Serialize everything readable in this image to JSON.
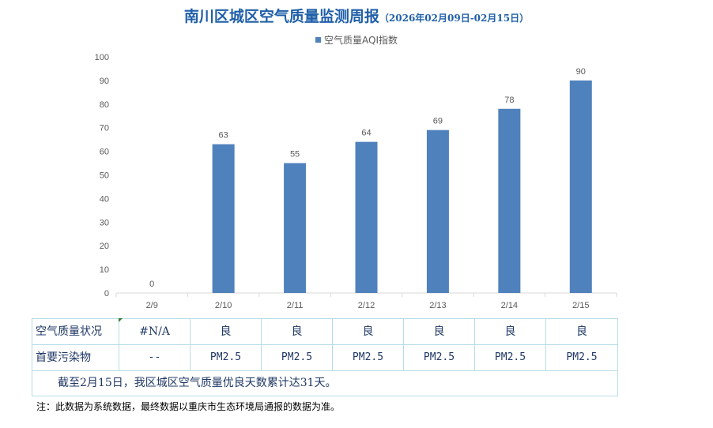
{
  "chart_data": {
    "type": "bar",
    "title": "南川区城区空气质量监测周报",
    "subtitle": "（2026年02月09日-02月15日）",
    "categories": [
      "2/9",
      "2/10",
      "2/11",
      "2/12",
      "2/13",
      "2/14",
      "2/15"
    ],
    "series": [
      {
        "name": "空气质量AQI指数",
        "values": [
          0,
          63,
          55,
          64,
          69,
          78,
          90
        ],
        "color": "#4f81bd"
      }
    ],
    "ylim": [
      0,
      100
    ],
    "yticks": [
      0,
      10,
      20,
      30,
      40,
      50,
      60,
      70,
      80,
      90,
      100
    ],
    "grid": false,
    "legend": "top-center",
    "data_labels": true
  },
  "table": {
    "row1_header": "空气质量状况",
    "row1_values": [
      "#N/A",
      "良",
      "良",
      "良",
      "良",
      "良",
      "良"
    ],
    "row2_header": "首要污染物",
    "row2_values": [
      "--",
      "PM2.5",
      "PM2.5",
      "PM2.5",
      "PM2.5",
      "PM2.5",
      "PM2.5"
    ],
    "summary": "截至2月15日，我区城区空气质量优良天数累计达31天。"
  },
  "note": "注：此数据为系统数据，最终数据以重庆市生态环境局通报的数据为准。"
}
